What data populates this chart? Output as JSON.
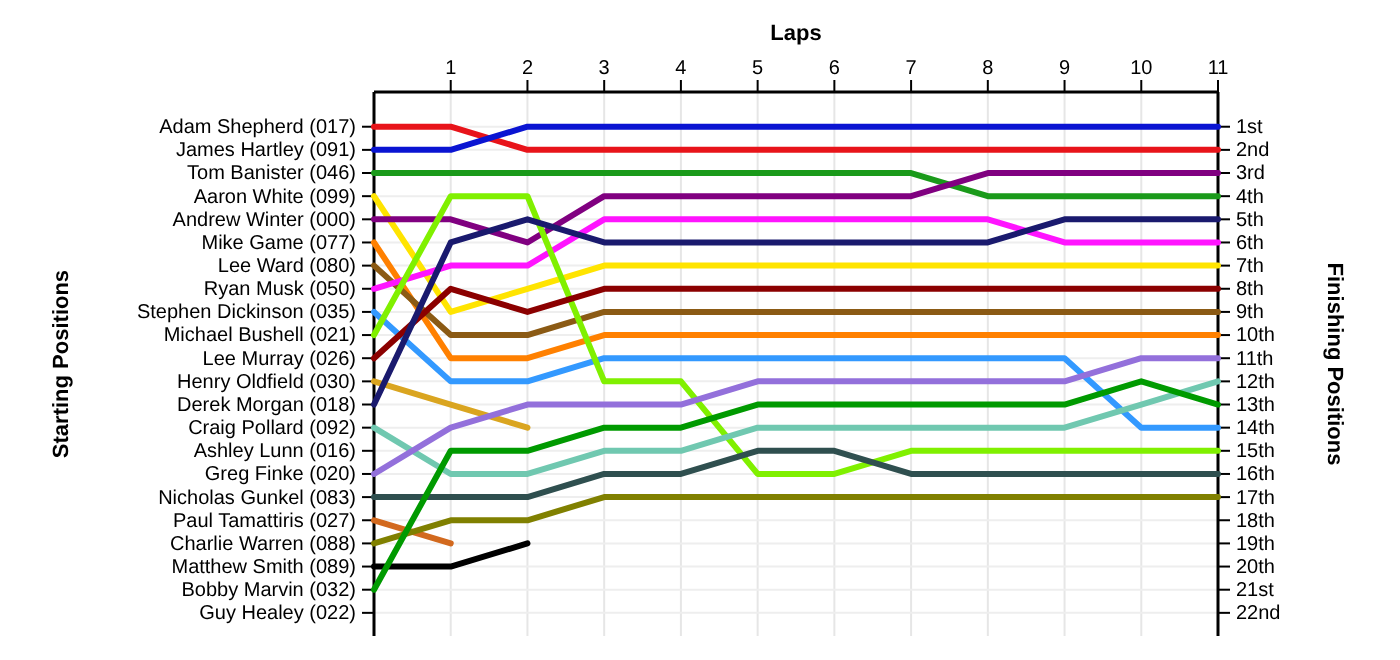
{
  "chart_data": {
    "type": "line",
    "xlabel": "Laps",
    "ylabel": "Finishing Positions",
    "x": [
      0,
      1,
      2,
      3,
      4,
      5,
      6,
      7,
      8,
      9,
      10,
      11
    ],
    "xlim": [
      0,
      11
    ],
    "xticks": [
      1,
      2,
      3,
      4,
      5,
      6,
      7,
      8,
      9,
      10,
      11
    ],
    "ylim": [
      23,
      -0.5
    ],
    "yticks": [
      {
        "value": 1,
        "label": "1st"
      },
      {
        "value": 2,
        "label": "2nd"
      },
      {
        "value": 3,
        "label": "3rd"
      },
      {
        "value": 4,
        "label": "4th"
      },
      {
        "value": 5,
        "label": "5th"
      },
      {
        "value": 6,
        "label": "6th"
      },
      {
        "value": 7,
        "label": "7th"
      },
      {
        "value": 8,
        "label": "8th"
      },
      {
        "value": 9,
        "label": "9th"
      },
      {
        "value": 10,
        "label": "10th"
      },
      {
        "value": 11,
        "label": "11th"
      },
      {
        "value": 12,
        "label": "12th"
      },
      {
        "value": 13,
        "label": "13th"
      },
      {
        "value": 14,
        "label": "14th"
      },
      {
        "value": 15,
        "label": "15th"
      },
      {
        "value": 16,
        "label": "16th"
      },
      {
        "value": 17,
        "label": "17th"
      },
      {
        "value": 18,
        "label": "18th"
      },
      {
        "value": 19,
        "label": "19th"
      },
      {
        "value": 20,
        "label": "20th"
      },
      {
        "value": 21,
        "label": "21st"
      },
      {
        "value": 22,
        "label": "22nd"
      }
    ],
    "annotations": [
      "Starting Positions",
      "Adam Shepherd (017)",
      "James Hartley (091)",
      "Tom Banister (046)",
      "Aaron White (099)",
      "Andrew Winter (000)",
      "Mike Game (077)",
      "Lee Ward (080)",
      "Ryan Musk (050)",
      "Stephen Dickinson (035)",
      "Michael Bushell (021)",
      "Lee Murray (026)",
      "Henry Oldfield (030)",
      "Derek Morgan (018)",
      "Craig Pollard (092)",
      "Ashley Lunn (016)",
      "Greg Finke (020)",
      "Nicholas Gunkel (083)",
      "Paul Tamattiris (027)",
      "Charlie Warren (088)",
      "Matthew Smith (089)",
      "Bobby Marvin (032)",
      "Guy Healey (022)"
    ],
    "grid": true,
    "marker": "none",
    "line_style": "solid",
    "series": [
      {
        "color": "#e8141a",
        "values": [
          1,
          1,
          2,
          2,
          2,
          2,
          2,
          2,
          2,
          2,
          2,
          2
        ]
      },
      {
        "color": "#0a14d2",
        "values": [
          2,
          2,
          1,
          1,
          1,
          1,
          1,
          1,
          1,
          1,
          1,
          1
        ]
      },
      {
        "color": "#1a9a1a",
        "values": [
          3,
          3,
          3,
          3,
          3,
          3,
          3,
          3,
          4,
          4,
          4,
          4
        ]
      },
      {
        "color": "#ffe400",
        "values": [
          4,
          9,
          8,
          7,
          7,
          7,
          7,
          7,
          7,
          7,
          7,
          7
        ]
      },
      {
        "color": "#800080",
        "values": [
          5,
          5,
          6,
          4,
          4,
          4,
          4,
          4,
          3,
          3,
          3,
          3
        ]
      },
      {
        "color": "#ff8000",
        "values": [
          6,
          11,
          11,
          10,
          10,
          10,
          10,
          10,
          10,
          10,
          10,
          10
        ]
      },
      {
        "color": "#8b5a14",
        "values": [
          7,
          10,
          10,
          9,
          9,
          9,
          9,
          9,
          9,
          9,
          9,
          9
        ]
      },
      {
        "color": "#ff14ff",
        "values": [
          8,
          7,
          7,
          5,
          5,
          5,
          5,
          5,
          5,
          6,
          6,
          6
        ]
      },
      {
        "color": "#3399ff",
        "values": [
          9,
          12,
          12,
          11,
          11,
          11,
          11,
          11,
          11,
          11,
          14,
          14
        ]
      },
      {
        "color": "#80f000",
        "values": [
          10,
          4,
          4,
          12,
          12,
          16,
          16,
          15,
          15,
          15,
          15,
          15
        ]
      },
      {
        "color": "#8b0000",
        "values": [
          11,
          8,
          9,
          8,
          8,
          8,
          8,
          8,
          8,
          8,
          8,
          8
        ]
      },
      {
        "color": "#daa520",
        "values": [
          12,
          13,
          14,
          null,
          null,
          null,
          null,
          null,
          null,
          null,
          null,
          null
        ]
      },
      {
        "color": "#1a1a6e",
        "values": [
          13,
          6,
          5,
          6,
          6,
          6,
          6,
          6,
          6,
          5,
          5,
          5
        ]
      },
      {
        "color": "#70c8b0",
        "values": [
          14,
          16,
          16,
          15,
          15,
          14,
          14,
          14,
          14,
          14,
          13,
          12
        ]
      },
      {
        "color": "#9370db",
        "values": [
          16,
          14,
          13,
          13,
          13,
          12,
          12,
          12,
          12,
          12,
          11,
          11
        ]
      },
      {
        "color": "#2f4f4f",
        "values": [
          17,
          17,
          17,
          16,
          16,
          15,
          15,
          16,
          16,
          16,
          16,
          16
        ]
      },
      {
        "color": "#d2691e",
        "values": [
          18,
          19,
          null,
          null,
          null,
          null,
          null,
          null,
          null,
          null,
          null,
          null
        ]
      },
      {
        "color": "#808000",
        "values": [
          19,
          18,
          18,
          17,
          17,
          17,
          17,
          17,
          17,
          17,
          17,
          17
        ]
      },
      {
        "color": "#000000",
        "values": [
          20,
          20,
          19,
          null,
          null,
          null,
          null,
          null,
          null,
          null,
          null,
          null
        ]
      },
      {
        "color": "#009a00",
        "values": [
          21,
          15,
          15,
          14,
          14,
          13,
          13,
          13,
          13,
          13,
          12,
          13
        ]
      }
    ]
  }
}
